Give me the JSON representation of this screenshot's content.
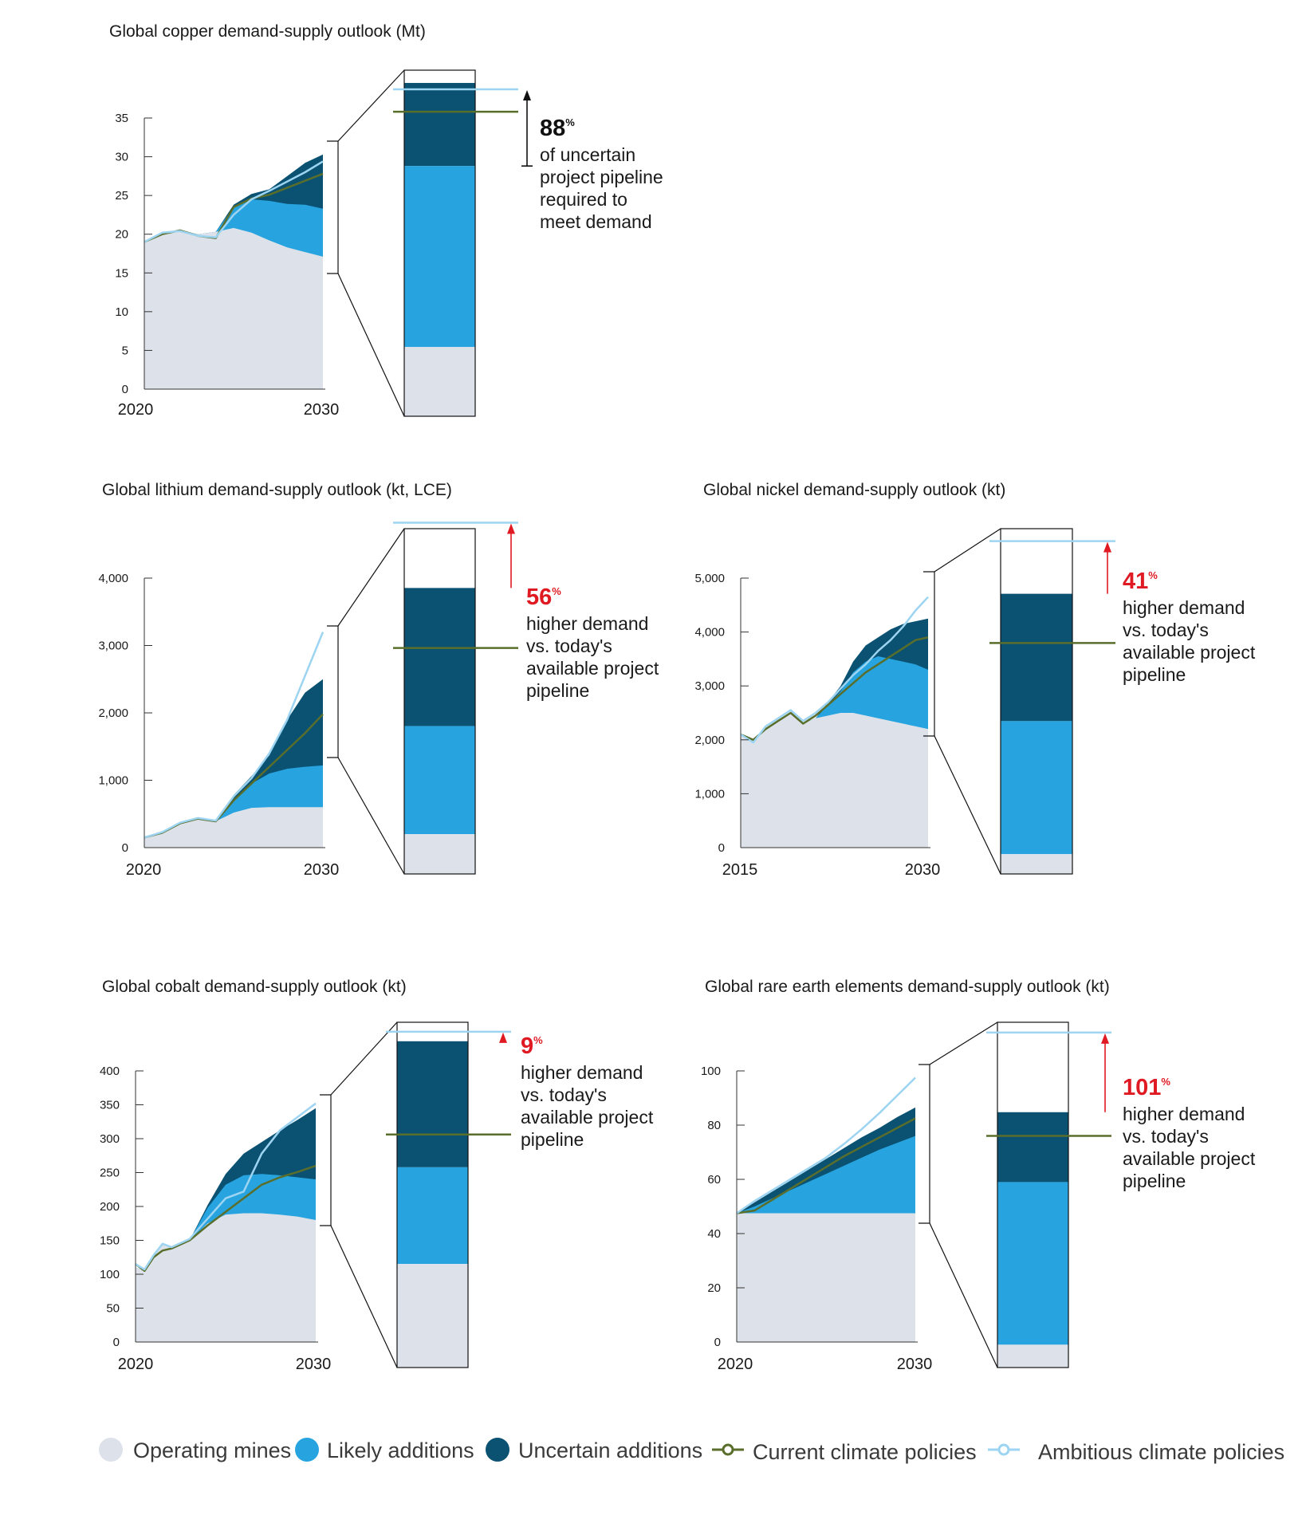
{
  "colors": {
    "operating": "#dde2ea",
    "likely": "#27a4df",
    "uncertain": "#0b5272",
    "current": "#5a6e2c",
    "ambitious": "#9dd4f1",
    "red": "#e01a22",
    "black": "#111111"
  },
  "legend": [
    {
      "label": "Operating mines",
      "type": "dot",
      "color_key": "operating"
    },
    {
      "label": "Likely additions",
      "type": "dot",
      "color_key": "likely"
    },
    {
      "label": "Uncertain additions",
      "type": "dot",
      "color_key": "uncertain"
    },
    {
      "label": "Current climate policies",
      "type": "line",
      "color_key": "current"
    },
    {
      "label": "Ambitious climate policies",
      "type": "line",
      "color_key": "ambitious"
    }
  ],
  "chart_data": [
    {
      "id": "copper",
      "type": "area",
      "title": "Global copper demand-supply outlook (Mt)",
      "ylim": [
        0,
        35
      ],
      "yticks": [
        0,
        5,
        10,
        15,
        20,
        25,
        30,
        35
      ],
      "ytick_labels": [
        "0",
        "5",
        "10",
        "15",
        "20",
        "25",
        "30",
        "35"
      ],
      "xlim": [
        2020,
        2030
      ],
      "xtick_labels": [
        "2020",
        "2030"
      ],
      "x": [
        2020,
        2021,
        2022,
        2023,
        2024,
        2025,
        2026,
        2027,
        2028,
        2029,
        2030
      ],
      "operating": [
        19,
        20,
        20.5,
        20,
        20.3,
        20.8,
        20.2,
        19.2,
        18.3,
        17.7,
        17.1
      ],
      "likely": [
        19,
        20,
        20.5,
        20,
        20.3,
        23.5,
        24.5,
        24.3,
        23.9,
        23.8,
        23.3
      ],
      "uncertain": [
        19,
        20,
        20.5,
        20,
        20.3,
        23.8,
        25.2,
        25.8,
        27.5,
        29.2,
        30.3
      ],
      "current": [
        19,
        20,
        20.5,
        19.8,
        19.5,
        23.5,
        24.6,
        25.1,
        26,
        26.9,
        27.8
      ],
      "ambitious": [
        19,
        20.2,
        20.4,
        19.8,
        19.6,
        22.5,
        24.5,
        25.6,
        26.8,
        28,
        29.4
      ],
      "zoom": {
        "top": 32.5,
        "operating": 6.5,
        "likely": 23.5,
        "uncertain": 31.3,
        "current": 28.6,
        "ambitious": 30.7
      },
      "annotation": {
        "value": "88",
        "unit": "%",
        "color_key": "black",
        "lines": [
          "of uncertain",
          "project pipeline",
          "required to",
          "meet demand"
        ]
      }
    },
    {
      "id": "lithium",
      "type": "area",
      "title": "Global lithium demand-supply outlook (kt, LCE)",
      "ylim": [
        0,
        4000
      ],
      "yticks": [
        0,
        1000,
        2000,
        3000,
        4000
      ],
      "ytick_labels": [
        "0",
        "1,000",
        "2,000",
        "3,000",
        "4,000"
      ],
      "xlim": [
        2020,
        2030
      ],
      "xtick_labels": [
        "2020",
        "2030"
      ],
      "x": [
        2020,
        2021,
        2022,
        2023,
        2024,
        2025,
        2026,
        2027,
        2028,
        2029,
        2030
      ],
      "operating": [
        150,
        220,
        360,
        430,
        390,
        520,
        590,
        600,
        600,
        600,
        600
      ],
      "likely": [
        150,
        220,
        360,
        430,
        390,
        720,
        950,
        1100,
        1170,
        1200,
        1220
      ],
      "uncertain": [
        150,
        220,
        360,
        430,
        390,
        780,
        1060,
        1370,
        1900,
        2300,
        2500
      ],
      "current": [
        150,
        220,
        360,
        430,
        390,
        700,
        950,
        1200,
        1450,
        1700,
        1980
      ],
      "ambitious": [
        150,
        230,
        370,
        440,
        400,
        760,
        1030,
        1400,
        1900,
        2550,
        3200
      ],
      "zoom": {
        "top": 4600,
        "operating": 530,
        "likely": 1970,
        "uncertain": 3810,
        "current": 3010,
        "ambitious": 4680
      },
      "annotation": {
        "value": "56",
        "unit": "%",
        "color_key": "red",
        "lines": [
          "higher demand",
          "vs. today's",
          "available project",
          "pipeline"
        ]
      }
    },
    {
      "id": "nickel",
      "type": "area",
      "title": "Global nickel demand-supply outlook (kt)",
      "ylim": [
        0,
        5000
      ],
      "yticks": [
        0,
        1000,
        2000,
        3000,
        4000,
        5000
      ],
      "ytick_labels": [
        "0",
        "1,000",
        "2,000",
        "3,000",
        "4,000",
        "5,000"
      ],
      "xlim": [
        2015,
        2030
      ],
      "xtick_labels": [
        "2015",
        "2030"
      ],
      "x": [
        2015,
        2016,
        2017,
        2018,
        2019,
        2020,
        2021,
        2022,
        2023,
        2024,
        2025,
        2026,
        2027,
        2028,
        2029,
        2030
      ],
      "operating": [
        2100,
        2000,
        2200,
        2350,
        2500,
        2300,
        2400,
        2450,
        2500,
        2500,
        2450,
        2400,
        2350,
        2300,
        2250,
        2200
      ],
      "likely": [
        2100,
        2000,
        2200,
        2350,
        2500,
        2300,
        2400,
        2650,
        2900,
        3250,
        3450,
        3550,
        3500,
        3450,
        3400,
        3300
      ],
      "uncertain": [
        2100,
        2000,
        2200,
        2350,
        2500,
        2300,
        2400,
        2700,
        3000,
        3450,
        3750,
        3900,
        4050,
        4150,
        4200,
        4250
      ],
      "current": [
        2100,
        2000,
        2200,
        2350,
        2500,
        2300,
        2450,
        2650,
        2850,
        3050,
        3250,
        3400,
        3550,
        3700,
        3850,
        3900
      ],
      "ambitious": [
        2100,
        1950,
        2250,
        2400,
        2550,
        2350,
        2500,
        2700,
        2950,
        3200,
        3400,
        3650,
        3850,
        4100,
        4400,
        4650
      ],
      "zoom": {
        "top": 6100,
        "operating": 350,
        "likely": 2700,
        "uncertain": 4950,
        "current": 4080,
        "ambitious": 5880
      },
      "annotation": {
        "value": "41",
        "unit": "%",
        "color_key": "red",
        "lines": [
          "higher demand",
          "vs. today's",
          "available project",
          "pipeline"
        ]
      }
    },
    {
      "id": "cobalt",
      "type": "area",
      "title": "Global cobalt demand-supply outlook (kt)",
      "ylim": [
        0,
        400
      ],
      "yticks": [
        0,
        50,
        100,
        150,
        200,
        250,
        300,
        350,
        400
      ],
      "ytick_labels": [
        "0",
        "50",
        "100",
        "150",
        "200",
        "250",
        "300",
        "350",
        "400"
      ],
      "xlim": [
        2020,
        2030
      ],
      "xtick_labels": [
        "2020",
        "2030"
      ],
      "x": [
        2020,
        2020.5,
        2021,
        2021.5,
        2022,
        2023,
        2024,
        2025,
        2026,
        2027,
        2028,
        2029,
        2030
      ],
      "operating": [
        110,
        105,
        125,
        145,
        140,
        150,
        175,
        188,
        190,
        190,
        188,
        185,
        180
      ],
      "likely": [
        110,
        105,
        125,
        145,
        140,
        150,
        198,
        232,
        246,
        248,
        246,
        243,
        240
      ],
      "uncertain": [
        110,
        105,
        125,
        145,
        140,
        150,
        202,
        248,
        278,
        295,
        312,
        328,
        345
      ],
      "current": [
        115,
        105,
        125,
        135,
        138,
        150,
        172,
        192,
        212,
        232,
        243,
        251,
        260
      ],
      "ambitious": [
        115,
        107,
        128,
        145,
        140,
        152,
        182,
        212,
        222,
        278,
        312,
        332,
        352
      ],
      "zoom": {
        "top": 400,
        "operating": 120,
        "likely": 232,
        "uncertain": 378,
        "current": 270,
        "ambitious": 389
      },
      "annotation": {
        "value": "9",
        "unit": "%",
        "color_key": "red",
        "lines": [
          "higher demand",
          "vs. today's",
          "available project",
          "pipeline"
        ]
      }
    },
    {
      "id": "ree",
      "type": "area",
      "title": "Global rare earth elements demand-supply outlook (kt)",
      "ylim": [
        0,
        100
      ],
      "yticks": [
        0,
        20,
        40,
        60,
        80,
        100
      ],
      "ytick_labels": [
        "0",
        "20",
        "40",
        "60",
        "80",
        "100"
      ],
      "xlim": [
        2020,
        2030
      ],
      "xtick_labels": [
        "2020",
        "2030"
      ],
      "x": [
        2020,
        2021,
        2022,
        2023,
        2024,
        2025,
        2026,
        2027,
        2028,
        2029,
        2030
      ],
      "operating": [
        47.5,
        47.5,
        47.5,
        47.5,
        47.5,
        47.5,
        47.5,
        47.5,
        47.5,
        47.5,
        47.5
      ],
      "likely": [
        47.5,
        50,
        53,
        56,
        59,
        62,
        65,
        68,
        71,
        73.5,
        76
      ],
      "uncertain": [
        47.5,
        51.5,
        55.5,
        59.5,
        63.5,
        67.5,
        71.5,
        75.5,
        79,
        83,
        86.5
      ],
      "current": [
        47.5,
        48.5,
        52.5,
        56.5,
        60.5,
        64.5,
        68.5,
        72,
        75.5,
        79,
        82.5
      ],
      "ambitious": [
        47.5,
        52,
        56,
        60,
        64,
        68,
        73,
        78.5,
        84.5,
        91,
        97.5
      ],
      "zoom": {
        "top": 124,
        "operating": 8.2,
        "likely": 66.6,
        "uncertain": 91.7,
        "current": 83.2,
        "ambitious": 120.3
      },
      "annotation": {
        "value": "101",
        "unit": "%",
        "color_key": "red",
        "lines": [
          "higher demand",
          "vs. today's",
          "available project",
          "pipeline"
        ]
      }
    }
  ]
}
